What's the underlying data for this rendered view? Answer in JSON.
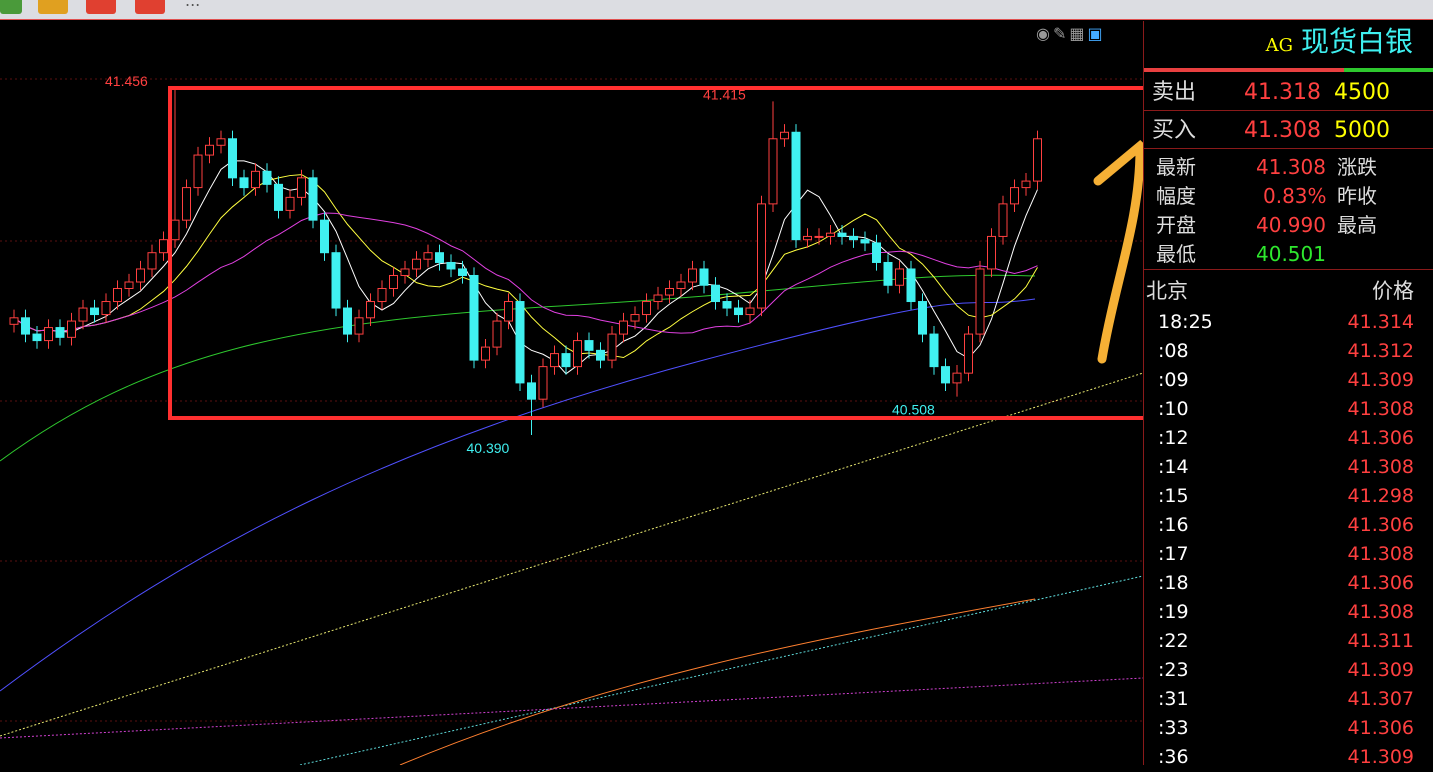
{
  "toolbar": {
    "buttons": [
      {
        "color": "#4a9a3a"
      },
      {
        "color": "#e0a020"
      },
      {
        "color": "#e04030"
      },
      {
        "color": "#e04030"
      }
    ],
    "more": "..."
  },
  "chart_icons": [
    "eye-hidden-icon",
    "pencil-icon",
    "grid-icon",
    "panel-toggle-icon"
  ],
  "quote": {
    "code": "AG",
    "name": "现货白银",
    "sell": {
      "label": "卖出",
      "price": "41.318",
      "volume": "4500"
    },
    "buy": {
      "label": "买入",
      "price": "41.308",
      "volume": "5000"
    },
    "latest": {
      "label": "最新",
      "value": "41.308"
    },
    "change": {
      "label": "涨跌"
    },
    "amplitude": {
      "label": "幅度",
      "value": "0.83%"
    },
    "prev_close": {
      "label": "昨收"
    },
    "open": {
      "label": "开盘",
      "value": "40.990"
    },
    "high": {
      "label": "最高"
    },
    "low": {
      "label": "最低",
      "value": "40.501"
    }
  },
  "ticks_header": {
    "time": "北京",
    "price": "价格"
  },
  "ticks": [
    {
      "t": "18:25",
      "p": "41.314"
    },
    {
      "t": ":08",
      "p": "41.312"
    },
    {
      "t": ":09",
      "p": "41.309"
    },
    {
      "t": ":10",
      "p": "41.308"
    },
    {
      "t": ":12",
      "p": "41.306"
    },
    {
      "t": ":14",
      "p": "41.308"
    },
    {
      "t": ":15",
      "p": "41.298"
    },
    {
      "t": ":16",
      "p": "41.306"
    },
    {
      "t": ":17",
      "p": "41.308"
    },
    {
      "t": ":18",
      "p": "41.306"
    },
    {
      "t": ":19",
      "p": "41.308"
    },
    {
      "t": ":22",
      "p": "41.311"
    },
    {
      "t": ":23",
      "p": "41.309"
    },
    {
      "t": ":31",
      "p": "41.307"
    },
    {
      "t": ":33",
      "p": "41.306"
    },
    {
      "t": ":36",
      "p": "41.309"
    }
  ],
  "colors": {
    "up": "#ff4040",
    "down": "#40f0f0",
    "annotation_box": "#ff3030",
    "arrow": "#f5b035"
  },
  "chart_data": {
    "type": "candlestick",
    "close": [
      40.75,
      40.7,
      40.68,
      40.72,
      40.69,
      40.74,
      40.78,
      40.76,
      40.8,
      40.84,
      40.86,
      40.9,
      40.95,
      40.99,
      41.05,
      41.15,
      41.25,
      41.28,
      41.3,
      41.18,
      41.15,
      41.2,
      41.16,
      41.08,
      41.12,
      41.18,
      41.05,
      40.95,
      40.78,
      40.7,
      40.75,
      40.8,
      40.84,
      40.88,
      40.9,
      40.93,
      40.95,
      40.92,
      40.9,
      40.88,
      40.62,
      40.66,
      40.74,
      40.8,
      40.55,
      40.5,
      40.6,
      40.64,
      40.6,
      40.68,
      40.65,
      40.62,
      40.7,
      40.74,
      40.76,
      40.8,
      40.82,
      40.84,
      40.86,
      40.9,
      40.85,
      40.8,
      40.78,
      40.76,
      40.78,
      41.1,
      41.3,
      41.32,
      40.99,
      41.0,
      41.0,
      41.01,
      41.0,
      40.99,
      40.98,
      40.92,
      40.85,
      40.9,
      40.8,
      40.7,
      40.6,
      40.55,
      40.58,
      40.7,
      40.9,
      41.0,
      41.1,
      41.15,
      41.17,
      41.3
    ],
    "annotations": [
      {
        "label": "41.456",
        "index": 14,
        "value": 41.456,
        "kind": "high"
      },
      {
        "label": "41.415",
        "index": 66,
        "value": 41.415,
        "kind": "high"
      },
      {
        "label": "40.390",
        "index": 45,
        "value": 40.39,
        "kind": "low"
      },
      {
        "label": "40.508",
        "index": 82,
        "value": 40.508,
        "kind": "low"
      }
    ],
    "ylim": [
      39.5,
      41.6
    ]
  }
}
